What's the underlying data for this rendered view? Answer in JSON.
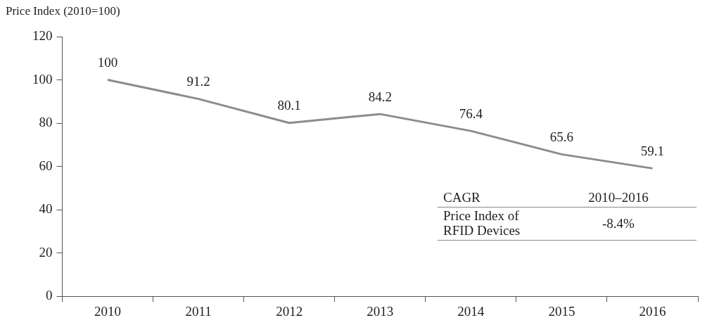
{
  "chart_data": {
    "type": "line",
    "ylabel": "Price Index (2010=100)",
    "categories": [
      "2010",
      "2011",
      "2012",
      "2013",
      "2014",
      "2015",
      "2016"
    ],
    "series": [
      {
        "color": "#8c8c8c",
        "values": [
          100,
          91.2,
          80.1,
          84.2,
          76.4,
          65.6,
          59.1
        ]
      }
    ],
    "ylim": [
      0,
      120
    ],
    "yticks": [
      0,
      20,
      40,
      60,
      80,
      100,
      120
    ],
    "grid": false,
    "legend": false,
    "marker": "none",
    "line_style": "solid",
    "data_labels": true,
    "annotations": [
      "CAGR",
      "2010–2016",
      "Price Index of RFID Devices",
      "-8.4%"
    ]
  }
}
